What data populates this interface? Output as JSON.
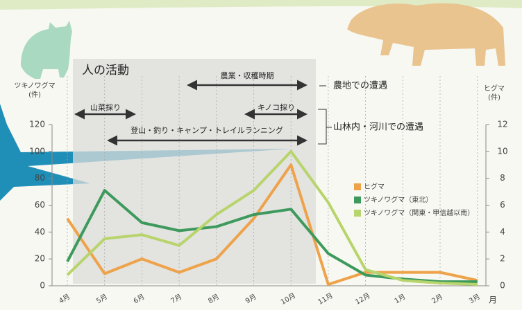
{
  "chart_data": {
    "type": "line",
    "y_label": "ツキノワグマ",
    "y_unit": "(件)",
    "y2_label": "ヒグマ",
    "y2_unit": "(件)",
    "x_label": "月",
    "categories": [
      "4月",
      "5月",
      "6月",
      "7月",
      "8月",
      "9月",
      "10月",
      "11月",
      "12月",
      "1月",
      "2月",
      "3月"
    ],
    "series": [
      {
        "name": "ヒグマ",
        "color": "#eea24a",
        "axis": "y2",
        "values": [
          5.0,
          0.9,
          2.0,
          1.0,
          2.0,
          5.0,
          9.0,
          0.1,
          1.0,
          1.0,
          1.0,
          0.4
        ]
      },
      {
        "name": "ツキノワグマ（東北）",
        "color": "#3d9a5c",
        "values": [
          18,
          71,
          47,
          41,
          44,
          53,
          57,
          24,
          8,
          5,
          3,
          3
        ]
      },
      {
        "name": "ツキノワグマ（関東・甲信越以南）",
        "color": "#b8d46c",
        "values": [
          8,
          35,
          38,
          30,
          53,
          71,
          100,
          62,
          12,
          4,
          2,
          1
        ]
      }
    ],
    "ylim": [
      0,
      120
    ],
    "yticks": [
      0,
      20,
      40,
      60,
      80,
      100,
      120
    ],
    "y2lim": [
      0,
      12
    ],
    "y2ticks": [
      0,
      2,
      4,
      6,
      8,
      10,
      12
    ],
    "annotations": {
      "region_title": "人の活動",
      "arrows": [
        "農業・収穫時期",
        "山菜採り",
        "キノコ採り",
        "登山・釣り・キャンプ・トレイルランニング"
      ],
      "notes": [
        "農地での遭遇",
        "山林内・河川での遭遇"
      ]
    }
  }
}
